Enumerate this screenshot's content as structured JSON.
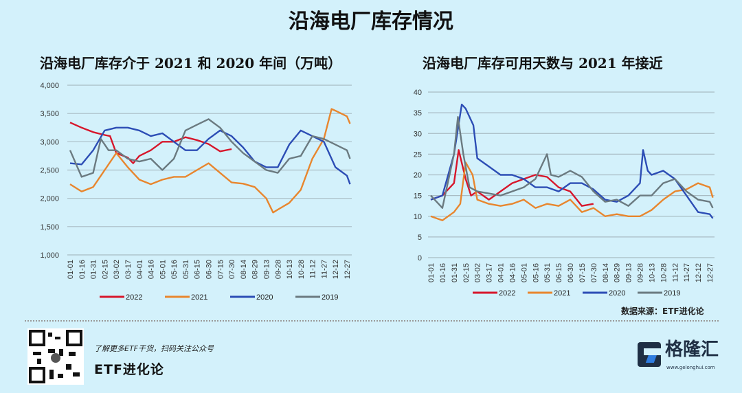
{
  "title": "沿海电厂库存情况",
  "source": "数据来源：ETF进化论",
  "footer": {
    "promo": "了解更多ETF干货，扫码关注公众号",
    "brand": "ETF进化论",
    "logo_text": "格隆汇",
    "logo_url": "www.gelonghui.com"
  },
  "colors": {
    "2022": "#d7162b",
    "2021": "#e8862e",
    "2020": "#2c4db5",
    "2019": "#6b7a80"
  },
  "chart_data": [
    {
      "type": "line",
      "title": "沿海电厂库存介于 2021 和 2020 年间（万吨）",
      "ylim": [
        1000,
        4000
      ],
      "yticks": [
        "1,000",
        "1,500",
        "2,000",
        "2,500",
        "3,000",
        "3,500",
        "4,000"
      ],
      "grid": true,
      "legend": "bottom",
      "xticks": [
        "01-01",
        "01-16",
        "01-31",
        "02-15",
        "03-02",
        "03-17",
        "04-01",
        "04-16",
        "05-01",
        "05-16",
        "05-31",
        "06-15",
        "06-30",
        "07-15",
        "07-30",
        "08-14",
        "08-29",
        "09-13",
        "09-28",
        "10-13",
        "10-28",
        "11-12",
        "11-27",
        "12-12",
        "12-27"
      ],
      "series": [
        {
          "name": "2022",
          "points": [
            [
              "01-01",
              3340
            ],
            [
              "01-16",
              3250
            ],
            [
              "01-31",
              3170
            ],
            [
              "02-15",
              3120
            ],
            [
              "02-22",
              3100
            ],
            [
              "03-02",
              2800
            ],
            [
              "03-17",
              2720
            ],
            [
              "03-24",
              2620
            ],
            [
              "04-01",
              2750
            ],
            [
              "04-16",
              2850
            ],
            [
              "05-01",
              3000
            ],
            [
              "05-16",
              3000
            ],
            [
              "05-31",
              3080
            ],
            [
              "06-15",
              3030
            ],
            [
              "06-30",
              2960
            ],
            [
              "07-15",
              2830
            ],
            [
              "07-30",
              2870
            ]
          ]
        },
        {
          "name": "2021",
          "points": [
            [
              "01-01",
              2250
            ],
            [
              "01-16",
              2120
            ],
            [
              "01-31",
              2200
            ],
            [
              "02-15",
              2500
            ],
            [
              "03-02",
              2800
            ],
            [
              "03-17",
              2550
            ],
            [
              "04-01",
              2330
            ],
            [
              "04-16",
              2250
            ],
            [
              "05-01",
              2330
            ],
            [
              "05-16",
              2380
            ],
            [
              "05-31",
              2380
            ],
            [
              "06-15",
              2500
            ],
            [
              "06-30",
              2620
            ],
            [
              "07-15",
              2450
            ],
            [
              "07-30",
              2280
            ],
            [
              "08-14",
              2260
            ],
            [
              "08-29",
              2200
            ],
            [
              "09-13",
              2000
            ],
            [
              "09-22",
              1750
            ],
            [
              "09-28",
              1800
            ],
            [
              "10-13",
              1920
            ],
            [
              "10-28",
              2150
            ],
            [
              "11-12",
              2700
            ],
            [
              "11-27",
              3050
            ],
            [
              "12-07",
              3580
            ],
            [
              "12-12",
              3550
            ],
            [
              "12-27",
              3450
            ],
            [
              "12-31",
              3320
            ]
          ]
        },
        {
          "name": "2020",
          "points": [
            [
              "01-01",
              2620
            ],
            [
              "01-16",
              2600
            ],
            [
              "01-31",
              2850
            ],
            [
              "02-15",
              3200
            ],
            [
              "03-02",
              3250
            ],
            [
              "03-17",
              3250
            ],
            [
              "04-01",
              3200
            ],
            [
              "04-16",
              3100
            ],
            [
              "05-01",
              3150
            ],
            [
              "05-16",
              3000
            ],
            [
              "05-31",
              2850
            ],
            [
              "06-15",
              2850
            ],
            [
              "06-30",
              3050
            ],
            [
              "07-15",
              3200
            ],
            [
              "07-30",
              3100
            ],
            [
              "08-14",
              2900
            ],
            [
              "08-29",
              2650
            ],
            [
              "09-13",
              2550
            ],
            [
              "09-28",
              2550
            ],
            [
              "10-13",
              2950
            ],
            [
              "10-28",
              3200
            ],
            [
              "11-12",
              3100
            ],
            [
              "11-27",
              3000
            ],
            [
              "12-12",
              2550
            ],
            [
              "12-27",
              2400
            ],
            [
              "12-31",
              2250
            ]
          ]
        },
        {
          "name": "2019",
          "points": [
            [
              "01-01",
              2850
            ],
            [
              "01-16",
              2380
            ],
            [
              "01-31",
              2450
            ],
            [
              "02-10",
              3050
            ],
            [
              "02-20",
              2850
            ],
            [
              "03-02",
              2850
            ],
            [
              "03-17",
              2700
            ],
            [
              "04-01",
              2650
            ],
            [
              "04-16",
              2700
            ],
            [
              "05-01",
              2500
            ],
            [
              "05-16",
              2700
            ],
            [
              "05-31",
              3200
            ],
            [
              "06-15",
              3300
            ],
            [
              "06-30",
              3400
            ],
            [
              "07-15",
              3250
            ],
            [
              "07-30",
              3000
            ],
            [
              "08-14",
              2800
            ],
            [
              "08-29",
              2650
            ],
            [
              "09-13",
              2500
            ],
            [
              "09-28",
              2450
            ],
            [
              "10-13",
              2700
            ],
            [
              "10-28",
              2750
            ],
            [
              "11-12",
              3100
            ],
            [
              "11-27",
              3050
            ],
            [
              "12-12",
              2950
            ],
            [
              "12-27",
              2850
            ],
            [
              "12-31",
              2700
            ]
          ]
        }
      ]
    },
    {
      "type": "line",
      "title": "沿海电厂库存可用天数与 2021 年接近",
      "ylim": [
        0,
        40
      ],
      "yticks": [
        "0",
        "5",
        "10",
        "15",
        "20",
        "25",
        "30",
        "35",
        "40"
      ],
      "grid": true,
      "legend": "bottom",
      "xticks": [
        "01-01",
        "01-16",
        "01-31",
        "02-15",
        "03-02",
        "03-17",
        "04-01",
        "04-16",
        "05-01",
        "05-16",
        "05-31",
        "06-15",
        "06-30",
        "07-15",
        "07-30",
        "08-14",
        "08-29",
        "09-13",
        "09-28",
        "10-13",
        "10-28",
        "11-12",
        "11-27",
        "12-12",
        "12-27"
      ],
      "series": [
        {
          "name": "2022",
          "points": [
            [
              "01-01",
              14
            ],
            [
              "01-16",
              15
            ],
            [
              "01-31",
              18
            ],
            [
              "02-06",
              26
            ],
            [
              "02-15",
              19
            ],
            [
              "02-22",
              15
            ],
            [
              "03-02",
              16
            ],
            [
              "03-17",
              14
            ],
            [
              "04-01",
              16
            ],
            [
              "04-16",
              18
            ],
            [
              "05-01",
              19
            ],
            [
              "05-16",
              20
            ],
            [
              "05-31",
              19.5
            ],
            [
              "06-15",
              17
            ],
            [
              "06-30",
              16
            ],
            [
              "07-15",
              12.5
            ],
            [
              "07-30",
              13
            ]
          ]
        },
        {
          "name": "2021",
          "points": [
            [
              "01-01",
              10
            ],
            [
              "01-16",
              9
            ],
            [
              "01-31",
              11
            ],
            [
              "02-08",
              13
            ],
            [
              "02-15",
              23
            ],
            [
              "02-24",
              20
            ],
            [
              "03-02",
              14
            ],
            [
              "03-17",
              13
            ],
            [
              "04-01",
              12.5
            ],
            [
              "04-16",
              13
            ],
            [
              "05-01",
              14
            ],
            [
              "05-16",
              12
            ],
            [
              "05-31",
              13
            ],
            [
              "06-15",
              12.5
            ],
            [
              "06-30",
              14
            ],
            [
              "07-15",
              11
            ],
            [
              "07-30",
              12
            ],
            [
              "08-14",
              10
            ],
            [
              "08-29",
              10.5
            ],
            [
              "09-13",
              10
            ],
            [
              "09-28",
              10
            ],
            [
              "10-13",
              11.5
            ],
            [
              "10-28",
              14
            ],
            [
              "11-12",
              16
            ],
            [
              "11-27",
              16.5
            ],
            [
              "12-12",
              18
            ],
            [
              "12-27",
              17
            ],
            [
              "12-31",
              14.5
            ]
          ]
        },
        {
          "name": "2020",
          "points": [
            [
              "01-01",
              14
            ],
            [
              "01-16",
              15
            ],
            [
              "01-31",
              25
            ],
            [
              "02-10",
              37
            ],
            [
              "02-15",
              36
            ],
            [
              "02-25",
              32
            ],
            [
              "03-02",
              24
            ],
            [
              "03-17",
              22
            ],
            [
              "04-01",
              20
            ],
            [
              "04-16",
              20
            ],
            [
              "05-01",
              19
            ],
            [
              "05-16",
              17
            ],
            [
              "05-31",
              17
            ],
            [
              "06-15",
              16
            ],
            [
              "06-30",
              18
            ],
            [
              "07-15",
              18
            ],
            [
              "07-30",
              16.5
            ],
            [
              "08-14",
              14
            ],
            [
              "08-29",
              13.5
            ],
            [
              "09-13",
              15
            ],
            [
              "09-28",
              18
            ],
            [
              "10-02",
              26
            ],
            [
              "10-08",
              21
            ],
            [
              "10-13",
              20
            ],
            [
              "10-28",
              21
            ],
            [
              "11-12",
              19
            ],
            [
              "11-27",
              15
            ],
            [
              "12-12",
              11
            ],
            [
              "12-27",
              10.5
            ],
            [
              "12-31",
              9.5
            ]
          ]
        },
        {
          "name": "2019",
          "points": [
            [
              "01-01",
              15
            ],
            [
              "01-16",
              12
            ],
            [
              "01-31",
              25
            ],
            [
              "02-05",
              34
            ],
            [
              "02-12",
              25
            ],
            [
              "02-20",
              17
            ],
            [
              "03-02",
              16
            ],
            [
              "03-17",
              15.5
            ],
            [
              "04-01",
              15
            ],
            [
              "04-16",
              16
            ],
            [
              "05-01",
              17
            ],
            [
              "05-16",
              19
            ],
            [
              "05-31",
              25
            ],
            [
              "06-05",
              20
            ],
            [
              "06-15",
              19.5
            ],
            [
              "06-30",
              21
            ],
            [
              "07-15",
              19.5
            ],
            [
              "07-30",
              16
            ],
            [
              "08-14",
              13.5
            ],
            [
              "08-29",
              14
            ],
            [
              "09-13",
              12.5
            ],
            [
              "09-28",
              15
            ],
            [
              "10-13",
              15
            ],
            [
              "10-28",
              18
            ],
            [
              "11-12",
              19
            ],
            [
              "11-27",
              16
            ],
            [
              "12-12",
              14
            ],
            [
              "12-27",
              13.5
            ],
            [
              "12-31",
              12
            ]
          ]
        }
      ]
    }
  ]
}
